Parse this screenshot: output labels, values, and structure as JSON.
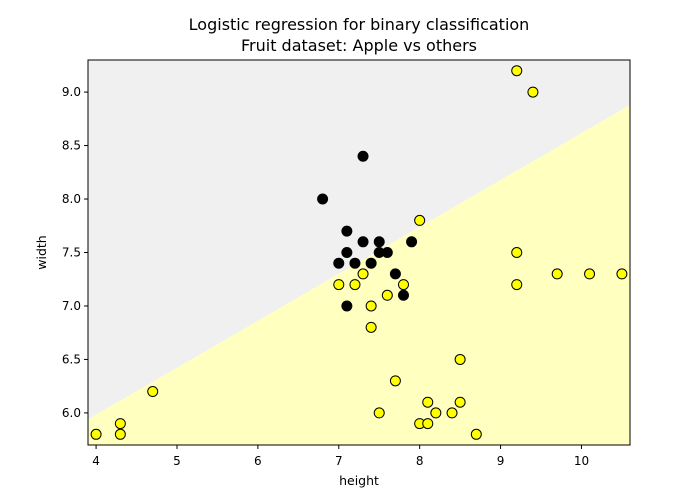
{
  "chart_data": {
    "type": "scatter",
    "title": "Logistic regression for binary classification",
    "subtitle": "Fruit dataset: Apple vs others",
    "xlabel": "height",
    "ylabel": "width",
    "xlim": [
      3.9,
      10.6
    ],
    "ylim": [
      5.7,
      9.3
    ],
    "xticks": [
      4,
      5,
      6,
      7,
      8,
      9,
      10
    ],
    "yticks": [
      6.0,
      6.5,
      7.0,
      7.5,
      8.0,
      8.5,
      9.0
    ],
    "decision_boundary": {
      "points": [
        [
          3.9,
          5.94
        ],
        [
          10.6,
          8.88
        ]
      ],
      "region_above_color": "#f0f0f0",
      "region_below_color": "#ffffc0"
    },
    "series": [
      {
        "color": "#000000",
        "x": [
          6.8,
          7.3,
          7.1,
          7.3,
          7.5,
          7.9,
          7.1,
          7.0,
          7.2,
          7.4,
          7.5,
          7.6,
          7.7,
          7.8,
          7.1
        ],
        "y": [
          8.0,
          8.4,
          7.7,
          7.6,
          7.6,
          7.6,
          7.5,
          7.4,
          7.4,
          7.4,
          7.5,
          7.5,
          7.3,
          7.1,
          7.0
        ]
      },
      {
        "color": "#ffff00",
        "x": [
          4.0,
          4.3,
          4.3,
          4.7,
          7.0,
          7.2,
          7.3,
          7.4,
          7.4,
          7.5,
          7.6,
          7.7,
          7.8,
          8.0,
          8.0,
          8.1,
          8.1,
          8.2,
          8.4,
          8.5,
          8.5,
          8.7,
          9.2,
          9.4,
          9.2,
          9.2,
          9.7,
          10.1,
          10.5
        ],
        "y": [
          5.8,
          5.9,
          5.8,
          6.2,
          7.2,
          7.2,
          7.3,
          7.0,
          6.8,
          6.0,
          7.1,
          6.3,
          7.2,
          7.8,
          5.9,
          6.1,
          5.9,
          6.0,
          6.0,
          6.5,
          6.1,
          5.8,
          9.2,
          9.0,
          7.5,
          7.2,
          7.3,
          7.3,
          7.3
        ]
      }
    ]
  }
}
